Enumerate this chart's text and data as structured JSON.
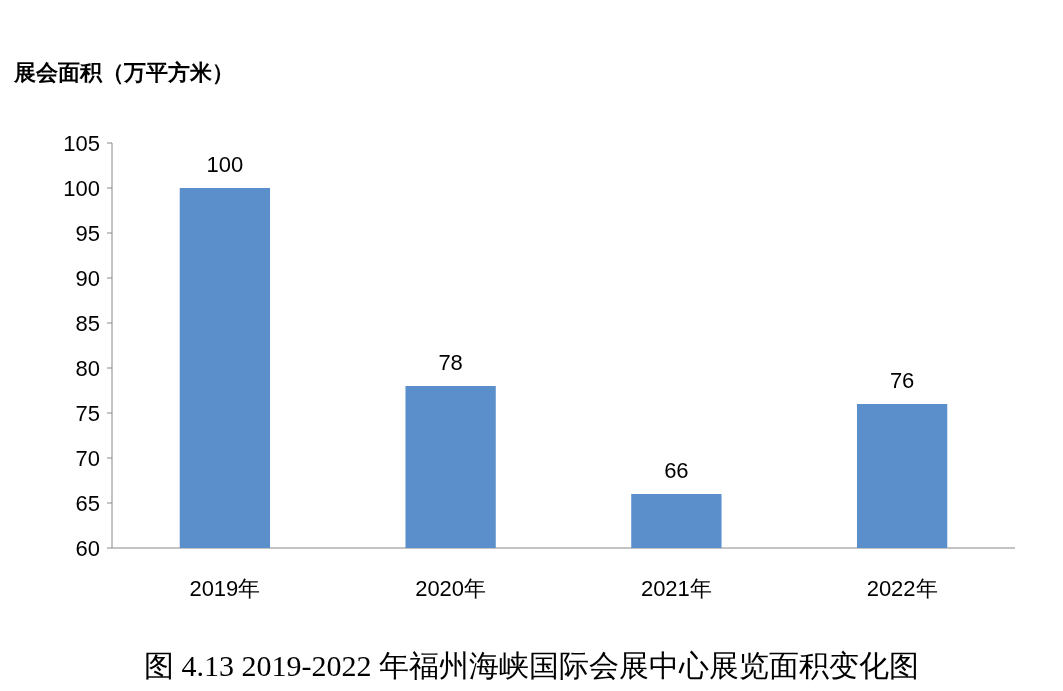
{
  "chart_data": {
    "type": "bar",
    "title": "图 4.13  2019-2022 年福州海峡国际会展中心展览面积变化图",
    "ylabel": "展会面积（万平方米）",
    "categories": [
      "2019年",
      "2020年",
      "2021年",
      "2022年"
    ],
    "values": [
      100,
      78,
      66,
      76
    ],
    "color": "#5b8fcb",
    "data_labels": true,
    "ylim": [
      60,
      105
    ],
    "yticks": [
      60,
      65,
      70,
      75,
      80,
      85,
      90,
      95,
      100,
      105
    ]
  }
}
